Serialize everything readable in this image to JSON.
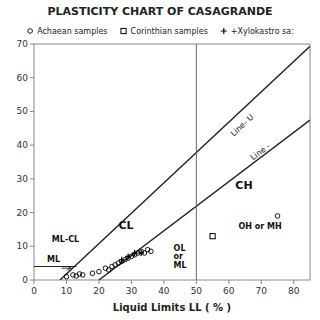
{
  "chart_data": {
    "type": "scatter",
    "title": "PLASTICITY CHART OF CASAGRANDE",
    "xlabel": "Liquid Limits  LL ( % )",
    "xlim": [
      0,
      85
    ],
    "ylim": [
      0,
      70
    ],
    "xticks": [
      0,
      10,
      20,
      30,
      40,
      50,
      60,
      70,
      80
    ],
    "yticks": [
      0,
      10,
      20,
      30,
      40,
      50,
      60,
      70
    ],
    "grid": false,
    "series": [
      {
        "name": "Achaean samples",
        "color": "black",
        "marker": "circle",
        "x": [
          10,
          12,
          13,
          14,
          15,
          18,
          20,
          22,
          23,
          24,
          25,
          26,
          27,
          28,
          29,
          30,
          31,
          32,
          33,
          34,
          35,
          36,
          75
        ],
        "values": [
          1.0,
          1.5,
          1.2,
          1.8,
          1.5,
          2.0,
          2.5,
          3.5,
          3.0,
          4.0,
          4.5,
          5.0,
          5.5,
          6.0,
          6.5,
          7.0,
          7.5,
          8.0,
          8.5,
          8.0,
          9.0,
          8.5,
          19.0
        ]
      },
      {
        "name": "Corinthian samples",
        "color": "black",
        "marker": "square",
        "x": [
          55
        ],
        "values": [
          13
        ]
      },
      {
        "name": "+Xylokastro sa:",
        "color": "black",
        "marker": "plus",
        "x": [
          27,
          29,
          31,
          33
        ],
        "values": [
          6.0,
          7.0,
          8.0,
          8.0
        ]
      }
    ],
    "reference_lines": [
      {
        "x": [
          20,
          85
        ],
        "y": [
          0,
          47.45
        ]
      },
      {
        "x": [
          8,
          85
        ],
        "y": [
          0,
          69.3
        ]
      },
      {
        "x": [
          0,
          13
        ],
        "y": [
          4,
          4
        ]
      }
    ],
    "vline_x": 50,
    "arrows": [
      {
        "x": [
          8.5,
          11.5
        ],
        "y": [
          3.5,
          3.5
        ]
      }
    ],
    "annotations": [
      {
        "text": "ML-CL",
        "x": 5.5,
        "y": 12
      },
      {
        "text": "ML",
        "x": 4,
        "y": 6
      },
      {
        "text": "CL",
        "x": 26,
        "y": 16
      },
      {
        "text": "OL\nor\nML",
        "x": 43,
        "y": 7
      },
      {
        "text": "CH",
        "x": 62,
        "y": 28
      },
      {
        "text": "OH or MH",
        "x": 63,
        "y": 16
      },
      {
        "text": "Line- U",
        "x": 61,
        "y": 43
      },
      {
        "text": "Line -",
        "x": 67,
        "y": 36
      }
    ]
  }
}
